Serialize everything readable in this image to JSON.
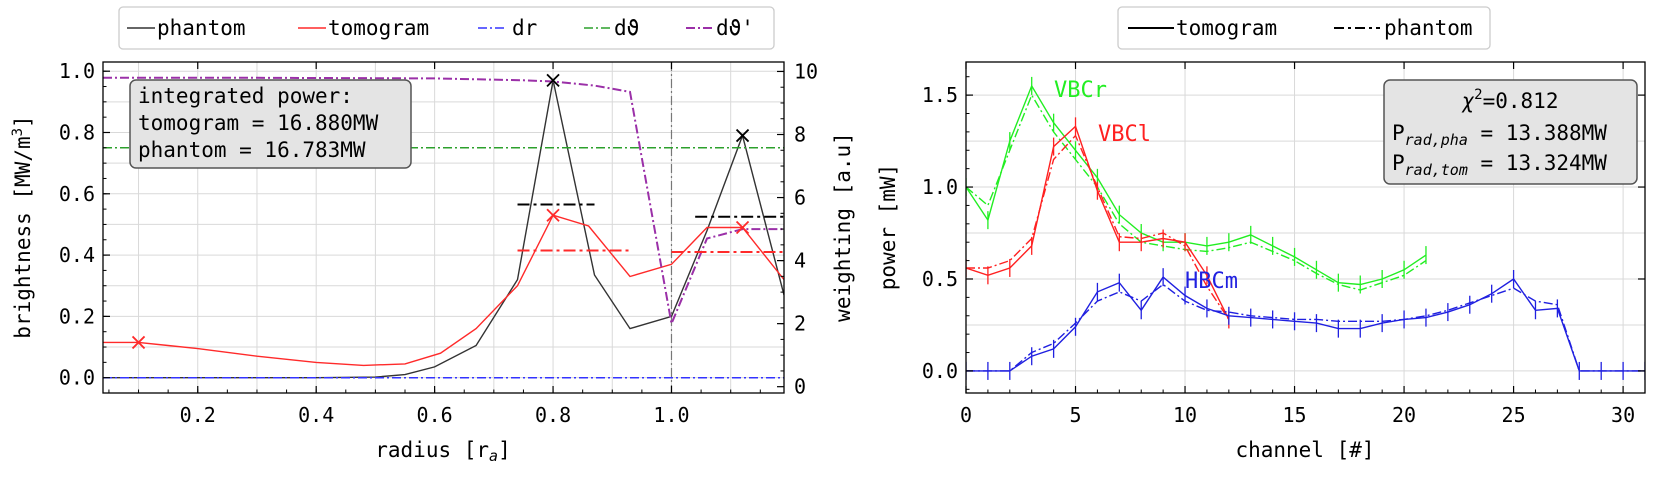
{
  "left": {
    "legend": {
      "phantom": "phantom",
      "tomogram": "tomogram",
      "dr": "dr",
      "dtheta": "dϑ",
      "dtheta_p": "dϑ'"
    },
    "info_box": {
      "line1": "integrated power:",
      "line2": "tomogram = 16.880MW",
      "line3": "phantom = 16.783MW"
    },
    "xlabel_main": "radius [r",
    "xlabel_sub": "a",
    "xlabel_end": "]",
    "ylabel_main": "brightness [MW/m",
    "ylabel_sup": "3",
    "ylabel_end": "]",
    "y2label": "weighting [a.u]",
    "xticks": [
      "0.2",
      "0.4",
      "0.6",
      "0.8",
      "1.0"
    ],
    "yticks": [
      "0.0",
      "0.2",
      "0.4",
      "0.6",
      "0.8",
      "1.0"
    ],
    "y2ticks": [
      "0",
      "2",
      "4",
      "6",
      "8",
      "10"
    ]
  },
  "right": {
    "legend": {
      "tomogram": "tomogram",
      "phantom": "phantom"
    },
    "info_box": {
      "chi_label": "χ",
      "chi_sup": "2",
      "chi_value": "=0.812",
      "p1_main": "P",
      "p1_sub": "rad,pha",
      "p1_value": " = 13.388MW",
      "p2_main": "P",
      "p2_sub": "rad,tom",
      "p2_value": " = 13.324MW"
    },
    "labels": {
      "vbcr": "VBCr",
      "vbcl": "VBCl",
      "hbcm": "HBCm"
    },
    "xlabel": "channel [#]",
    "ylabel": "power [mW]",
    "xticks": [
      "0",
      "5",
      "10",
      "15",
      "20",
      "25",
      "30"
    ],
    "yticks": [
      "0.0",
      "0.5",
      "1.0",
      "1.5"
    ]
  },
  "colors": {
    "phantom": "#333333",
    "tomogram": "#ff2a2a",
    "dr": "#3333ff",
    "dtheta": "#2ca02c",
    "dtheta_p": "#9b30a8",
    "vbcr": "#22ee22",
    "vbcl": "#ff2020",
    "hbcm": "#2020e0"
  },
  "chart_data": [
    {
      "type": "line",
      "xlabel": "radius [ra]",
      "ylabel": "brightness [MW/m3]",
      "y2label": "weighting [a.u]",
      "xlim": [
        0.04,
        1.19
      ],
      "ylim": [
        -0.05,
        1.03
      ],
      "y2lim": [
        -0.2,
        10.3
      ],
      "vline": 1.0,
      "series": [
        {
          "name": "phantom",
          "axis": "y",
          "x": [
            0.04,
            0.1,
            0.2,
            0.3,
            0.4,
            0.5,
            0.55,
            0.6,
            0.67,
            0.74,
            0.8,
            0.87,
            0.93,
            1.0,
            1.06,
            1.12,
            1.19
          ],
          "y": [
            0.0,
            0.0,
            0.0,
            0.0,
            0.0,
            0.002,
            0.01,
            0.035,
            0.105,
            0.32,
            0.97,
            0.335,
            0.16,
            0.2,
            0.48,
            0.79,
            0.27
          ]
        },
        {
          "name": "tomogram",
          "axis": "y",
          "x": [
            0.04,
            0.1,
            0.15,
            0.2,
            0.3,
            0.4,
            0.48,
            0.55,
            0.61,
            0.67,
            0.74,
            0.8,
            0.86,
            0.93,
            1.0,
            1.06,
            1.12,
            1.19
          ],
          "y": [
            0.115,
            0.115,
            0.105,
            0.095,
            0.07,
            0.05,
            0.04,
            0.045,
            0.08,
            0.16,
            0.3,
            0.53,
            0.495,
            0.33,
            0.37,
            0.49,
            0.49,
            0.32
          ]
        },
        {
          "name": "dr",
          "axis": "y",
          "x": [
            0.04,
            1.19
          ],
          "y": [
            0.0,
            0.0
          ]
        },
        {
          "name": "dϑ",
          "axis": "y",
          "x": [
            0.04,
            1.19
          ],
          "y": [
            0.75,
            0.75
          ]
        },
        {
          "name": "dϑ'",
          "axis": "y2",
          "x": [
            0.04,
            0.3,
            0.6,
            0.75,
            0.8,
            0.87,
            0.93,
            1.0,
            1.06,
            1.12,
            1.19
          ],
          "y": [
            9.8,
            9.8,
            9.78,
            9.72,
            9.68,
            9.55,
            9.35,
            2.0,
            4.7,
            5.0,
            5.0
          ]
        }
      ],
      "markers": {
        "phantom": [
          {
            "x": 0.8,
            "y": 0.97
          },
          {
            "x": 1.12,
            "y": 0.79
          }
        ],
        "tomogram": [
          {
            "x": 0.1,
            "y": 0.115
          },
          {
            "x": 0.8,
            "y": 0.53
          },
          {
            "x": 1.12,
            "y": 0.49
          }
        ]
      },
      "segments": {
        "phantom": [
          {
            "x1": 0.74,
            "x2": 0.87,
            "y": 0.565
          },
          {
            "x1": 1.04,
            "x2": 1.19,
            "y": 0.525
          }
        ],
        "tomogram": [
          {
            "x1": 0.74,
            "x2": 0.93,
            "y": 0.415
          },
          {
            "x1": 1.0,
            "x2": 1.19,
            "y": 0.41
          }
        ]
      }
    },
    {
      "type": "line",
      "xlabel": "channel [#]",
      "ylabel": "power [mW]",
      "xlim": [
        0,
        31
      ],
      "ylim": [
        -0.12,
        1.68
      ],
      "series": [
        {
          "name": "VBCr tomogram",
          "x": [
            0,
            1,
            2,
            3,
            4,
            5,
            6,
            7,
            8,
            9,
            10,
            11,
            12,
            13,
            14,
            15,
            16,
            17,
            18,
            19,
            20,
            21
          ],
          "y": [
            1.0,
            0.82,
            1.25,
            1.55,
            1.35,
            1.2,
            1.05,
            0.85,
            0.75,
            0.7,
            0.7,
            0.68,
            0.7,
            0.74,
            0.68,
            0.62,
            0.55,
            0.48,
            0.47,
            0.5,
            0.55,
            0.63
          ]
        },
        {
          "name": "VBCr phantom",
          "x": [
            0,
            1,
            2,
            3,
            4,
            5,
            6,
            7,
            8,
            9,
            10,
            11,
            12,
            13,
            14,
            15,
            16,
            17,
            18,
            19,
            20,
            21
          ],
          "y": [
            1.0,
            0.9,
            1.2,
            1.5,
            1.3,
            1.15,
            1.0,
            0.8,
            0.7,
            0.68,
            0.66,
            0.65,
            0.67,
            0.7,
            0.65,
            0.6,
            0.53,
            0.47,
            0.44,
            0.48,
            0.52,
            0.6
          ]
        },
        {
          "name": "VBCl tomogram",
          "x": [
            0,
            1,
            2,
            3,
            4,
            5,
            6,
            7,
            8,
            9,
            10,
            11,
            12
          ],
          "y": [
            0.56,
            0.52,
            0.56,
            0.68,
            1.22,
            1.33,
            0.98,
            0.7,
            0.7,
            0.72,
            0.7,
            0.52,
            0.28
          ]
        },
        {
          "name": "VBCl phantom",
          "x": [
            0,
            1,
            2,
            3,
            4,
            5,
            6,
            7,
            8,
            9,
            10,
            11,
            12
          ],
          "y": [
            0.56,
            0.56,
            0.6,
            0.72,
            1.15,
            1.28,
            1.0,
            0.73,
            0.72,
            0.75,
            0.68,
            0.46,
            0.28
          ]
        },
        {
          "name": "HBCm tomogram",
          "x": [
            0,
            1,
            2,
            3,
            4,
            5,
            6,
            7,
            8,
            9,
            10,
            11,
            12,
            13,
            14,
            15,
            16,
            17,
            18,
            19,
            20,
            21,
            22,
            23,
            24,
            25,
            26,
            27,
            28,
            29,
            30,
            31
          ],
          "y": [
            0.0,
            0.0,
            0.0,
            0.08,
            0.12,
            0.24,
            0.43,
            0.48,
            0.33,
            0.51,
            0.41,
            0.34,
            0.3,
            0.29,
            0.28,
            0.27,
            0.26,
            0.23,
            0.23,
            0.26,
            0.28,
            0.29,
            0.32,
            0.36,
            0.42,
            0.5,
            0.33,
            0.34,
            0.0,
            0.0,
            0.0,
            0.0
          ]
        },
        {
          "name": "HBCm phantom",
          "x": [
            0,
            1,
            2,
            3,
            4,
            5,
            6,
            7,
            8,
            9,
            10,
            11,
            12,
            13,
            14,
            15,
            16,
            17,
            18,
            19,
            20,
            21,
            22,
            23,
            24,
            25,
            26,
            27,
            28,
            29,
            30,
            31
          ],
          "y": [
            0.0,
            0.0,
            0.0,
            0.1,
            0.15,
            0.26,
            0.38,
            0.43,
            0.38,
            0.47,
            0.38,
            0.33,
            0.32,
            0.3,
            0.29,
            0.28,
            0.28,
            0.27,
            0.27,
            0.27,
            0.28,
            0.3,
            0.33,
            0.37,
            0.41,
            0.45,
            0.38,
            0.36,
            0.0,
            0.0,
            0.0,
            0.0
          ]
        }
      ]
    }
  ]
}
